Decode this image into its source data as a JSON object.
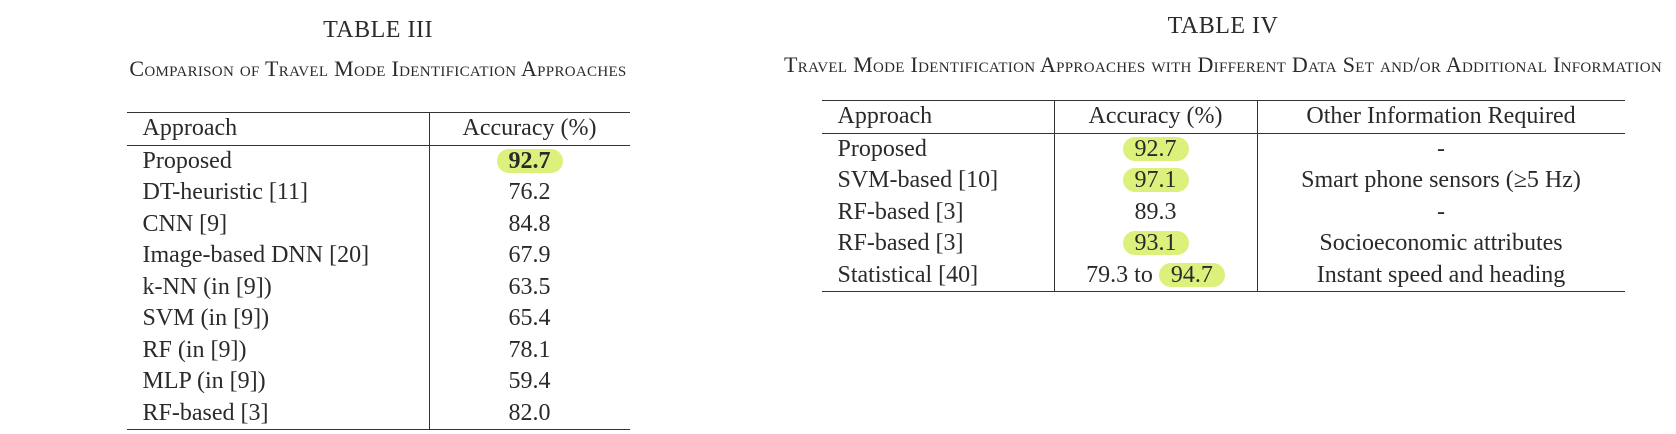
{
  "left": {
    "label": "TABLE III",
    "caption": "Comparison of Travel Mode Identification Approaches",
    "headers": [
      "Approach",
      "Accuracy (%)"
    ],
    "rows": [
      {
        "approach": "Proposed",
        "accuracy": "92.7"
      },
      {
        "approach": "DT-heuristic [11]",
        "accuracy": "76.2"
      },
      {
        "approach": "CNN [9]",
        "accuracy": "84.8"
      },
      {
        "approach": "Image-based DNN [20]",
        "accuracy": "67.9"
      },
      {
        "approach": "k-NN (in [9])",
        "accuracy": "63.5"
      },
      {
        "approach": "SVM (in [9])",
        "accuracy": "65.4"
      },
      {
        "approach": "RF (in [9])",
        "accuracy": "78.1"
      },
      {
        "approach": "MLP (in [9])",
        "accuracy": "59.4"
      },
      {
        "approach": "RF-based [3]",
        "accuracy": "82.0"
      }
    ]
  },
  "right": {
    "label": "TABLE IV",
    "caption": "Travel Mode Identification Approaches with Different Data Set and/or Additional Information",
    "headers": [
      "Approach",
      "Accuracy (%)",
      "Other Information Required"
    ],
    "rows": [
      {
        "approach": "Proposed",
        "accuracy": "92.7",
        "other": "-"
      },
      {
        "approach": "SVM-based [10]",
        "accuracy": "97.1",
        "other": "Smart phone sensors (≥5 Hz)"
      },
      {
        "approach": "RF-based [3]",
        "accuracy": "89.3",
        "other": "-"
      },
      {
        "approach": "RF-based [3]",
        "accuracy": "93.1",
        "other": "Socioeconomic attributes"
      },
      {
        "approach": "Statistical [40]",
        "accuracy_prefix": "79.3 to",
        "accuracy": "94.7",
        "other": "Instant speed and heading"
      }
    ]
  },
  "colors": {
    "highlight": "#dcf07c",
    "rule": "#333333",
    "text": "#2a2a2a"
  }
}
